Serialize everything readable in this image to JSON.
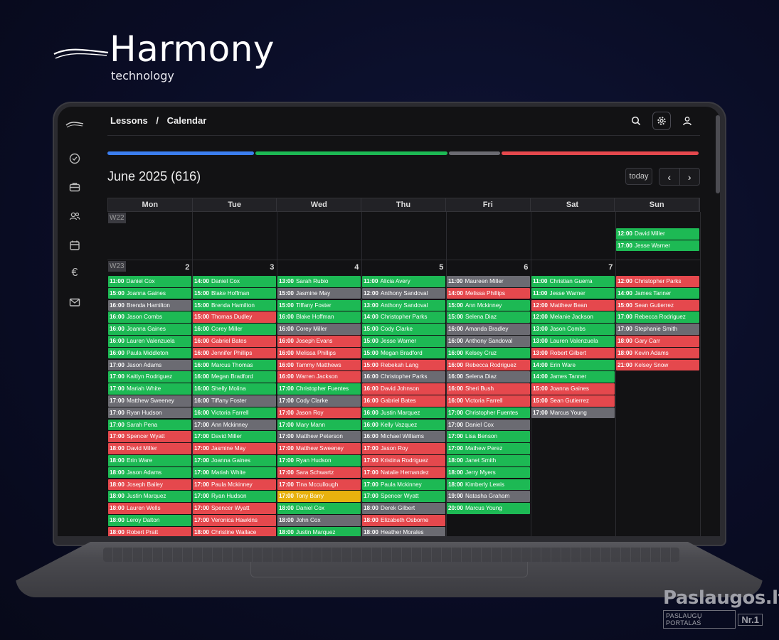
{
  "brand": {
    "title": "Harmony",
    "subtitle": "technology"
  },
  "breadcrumb": [
    "Lessons",
    "/",
    "Calendar"
  ],
  "header_icons": [
    "search-icon",
    "gear-icon",
    "user-icon"
  ],
  "sidebar_icons": [
    "check-circle-icon",
    "briefcase-icon",
    "users-icon",
    "calendar-icon",
    "euro-icon",
    "mail-icon"
  ],
  "progress": [
    {
      "color": "#3b7ef0",
      "value": 0.249
    },
    {
      "color": "#1db954",
      "value": 0.326
    },
    {
      "color": "#6b6b72",
      "value": 0.088
    },
    {
      "color": "#e5484d",
      "value": 0.334
    }
  ],
  "month_title": "June 2025 (616)",
  "today_label": "today",
  "nav": {
    "prev": "‹",
    "next": "›"
  },
  "weekdays": [
    "Mon",
    "Tue",
    "Wed",
    "Thu",
    "Fri",
    "Sat",
    "Sun"
  ],
  "colors": {
    "green": "#1db954",
    "red": "#e5484d",
    "gray": "#6b6b72",
    "yellow": "#e8b20e"
  },
  "weeks": [
    {
      "label": "W22",
      "days": [
        {
          "num": "",
          "events": []
        },
        {
          "num": "",
          "events": []
        },
        {
          "num": "",
          "events": []
        },
        {
          "num": "",
          "events": []
        },
        {
          "num": "",
          "events": []
        },
        {
          "num": "",
          "events": []
        },
        {
          "num": "",
          "events": [
            {
              "time": "12:00",
              "name": "David Miller",
              "status": "green"
            },
            {
              "time": "17:00",
              "name": "Jesse Warner",
              "status": "green"
            }
          ]
        }
      ]
    },
    {
      "label": "W23",
      "days": [
        {
          "num": "2",
          "events": [
            {
              "time": "11:00",
              "name": "Daniel Cox",
              "status": "green"
            },
            {
              "time": "15:00",
              "name": "Joanna Gaines",
              "status": "green"
            },
            {
              "time": "16:00",
              "name": "Brenda Hamilton",
              "status": "gray"
            },
            {
              "time": "16:00",
              "name": "Jason Combs",
              "status": "green"
            },
            {
              "time": "16:00",
              "name": "Joanna Gaines",
              "status": "green"
            },
            {
              "time": "16:00",
              "name": "Lauren Valenzuela",
              "status": "green"
            },
            {
              "time": "16:00",
              "name": "Paula Middleton",
              "status": "green"
            },
            {
              "time": "17:00",
              "name": "Jason Adams",
              "status": "gray"
            },
            {
              "time": "17:00",
              "name": "Kaitlyn Rodriguez",
              "status": "green"
            },
            {
              "time": "17:00",
              "name": "Mariah White",
              "status": "green"
            },
            {
              "time": "17:00",
              "name": "Matthew Sweeney",
              "status": "gray"
            },
            {
              "time": "17:00",
              "name": "Ryan Hudson",
              "status": "gray"
            },
            {
              "time": "17:00",
              "name": "Sarah Pena",
              "status": "green"
            },
            {
              "time": "17:00",
              "name": "Spencer Wyatt",
              "status": "red"
            },
            {
              "time": "18:00",
              "name": "David Miller",
              "status": "red"
            },
            {
              "time": "18:00",
              "name": "Erin Ware",
              "status": "green"
            },
            {
              "time": "18:00",
              "name": "Jason Adams",
              "status": "green"
            },
            {
              "time": "18:00",
              "name": "Joseph Bailey",
              "status": "red"
            },
            {
              "time": "18:00",
              "name": "Justin Marquez",
              "status": "green"
            },
            {
              "time": "18:00",
              "name": "Lauren Wells",
              "status": "red"
            },
            {
              "time": "18:00",
              "name": "Leroy Dalton",
              "status": "green"
            },
            {
              "time": "18:00",
              "name": "Robert Pratt",
              "status": "red"
            }
          ]
        },
        {
          "num": "3",
          "events": [
            {
              "time": "14:00",
              "name": "Daniel Cox",
              "status": "green"
            },
            {
              "time": "15:00",
              "name": "Blake Hoffman",
              "status": "green"
            },
            {
              "time": "15:00",
              "name": "Brenda Hamilton",
              "status": "green"
            },
            {
              "time": "15:00",
              "name": "Thomas Dudley",
              "status": "red"
            },
            {
              "time": "16:00",
              "name": "Corey Miller",
              "status": "green"
            },
            {
              "time": "16:00",
              "name": "Gabriel Bates",
              "status": "red"
            },
            {
              "time": "16:00",
              "name": "Jennifer Phillips",
              "status": "red"
            },
            {
              "time": "16:00",
              "name": "Marcus Thomas",
              "status": "green"
            },
            {
              "time": "16:00",
              "name": "Megan Bradford",
              "status": "green"
            },
            {
              "time": "16:00",
              "name": "Shelly Molina",
              "status": "green"
            },
            {
              "time": "16:00",
              "name": "Tiffany Foster",
              "status": "gray"
            },
            {
              "time": "16:00",
              "name": "Victoria Farrell",
              "status": "green"
            },
            {
              "time": "17:00",
              "name": "Ann Mckinney",
              "status": "gray"
            },
            {
              "time": "17:00",
              "name": "David Miller",
              "status": "green"
            },
            {
              "time": "17:00",
              "name": "Jasmine May",
              "status": "red"
            },
            {
              "time": "17:00",
              "name": "Joanna Gaines",
              "status": "green"
            },
            {
              "time": "17:00",
              "name": "Mariah White",
              "status": "green"
            },
            {
              "time": "17:00",
              "name": "Paula Mckinney",
              "status": "red"
            },
            {
              "time": "17:00",
              "name": "Ryan Hudson",
              "status": "green"
            },
            {
              "time": "17:00",
              "name": "Spencer Wyatt",
              "status": "red"
            },
            {
              "time": "17:00",
              "name": "Veronica Hawkins",
              "status": "red"
            },
            {
              "time": "18:00",
              "name": "Christine Wallace",
              "status": "red"
            }
          ]
        },
        {
          "num": "4",
          "events": [
            {
              "time": "13:00",
              "name": "Sarah Rubio",
              "status": "green"
            },
            {
              "time": "15:00",
              "name": "Jasmine May",
              "status": "gray"
            },
            {
              "time": "15:00",
              "name": "Tiffany Foster",
              "status": "green"
            },
            {
              "time": "16:00",
              "name": "Blake Hoffman",
              "status": "green"
            },
            {
              "time": "16:00",
              "name": "Corey Miller",
              "status": "gray"
            },
            {
              "time": "16:00",
              "name": "Joseph Evans",
              "status": "red"
            },
            {
              "time": "16:00",
              "name": "Melissa Phillips",
              "status": "red"
            },
            {
              "time": "16:00",
              "name": "Tammy Matthews",
              "status": "red"
            },
            {
              "time": "16:00",
              "name": "Warren Jackson",
              "status": "red"
            },
            {
              "time": "17:00",
              "name": "Christopher Fuentes",
              "status": "green"
            },
            {
              "time": "17:00",
              "name": "Cody Clarke",
              "status": "gray"
            },
            {
              "time": "17:00",
              "name": "Jason Roy",
              "status": "red"
            },
            {
              "time": "17:00",
              "name": "Mary Mann",
              "status": "green"
            },
            {
              "time": "17:00",
              "name": "Matthew Peterson",
              "status": "gray"
            },
            {
              "time": "17:00",
              "name": "Matthew Sweeney",
              "status": "red"
            },
            {
              "time": "17:00",
              "name": "Ryan Hudson",
              "status": "green"
            },
            {
              "time": "17:00",
              "name": "Sara Schwartz",
              "status": "red"
            },
            {
              "time": "17:00",
              "name": "Tina Mccullough",
              "status": "red"
            },
            {
              "time": "17:00",
              "name": "Tony Barry",
              "status": "yellow"
            },
            {
              "time": "18:00",
              "name": "Daniel Cox",
              "status": "green"
            },
            {
              "time": "18:00",
              "name": "John Cox",
              "status": "gray"
            },
            {
              "time": "18:00",
              "name": "Justin Marquez",
              "status": "green"
            }
          ]
        },
        {
          "num": "5",
          "events": [
            {
              "time": "11:00",
              "name": "Alicia Avery",
              "status": "green"
            },
            {
              "time": "12:00",
              "name": "Anthony Sandoval",
              "status": "gray"
            },
            {
              "time": "13:00",
              "name": "Anthony Sandoval",
              "status": "green"
            },
            {
              "time": "14:00",
              "name": "Christopher Parks",
              "status": "green"
            },
            {
              "time": "15:00",
              "name": "Cody Clarke",
              "status": "green"
            },
            {
              "time": "15:00",
              "name": "Jesse Warner",
              "status": "green"
            },
            {
              "time": "15:00",
              "name": "Megan Bradford",
              "status": "green"
            },
            {
              "time": "15:00",
              "name": "Rebekah Lang",
              "status": "red"
            },
            {
              "time": "16:00",
              "name": "Christopher Parks",
              "status": "gray"
            },
            {
              "time": "16:00",
              "name": "David Johnson",
              "status": "red"
            },
            {
              "time": "16:00",
              "name": "Gabriel Bates",
              "status": "red"
            },
            {
              "time": "16:00",
              "name": "Justin Marquez",
              "status": "green"
            },
            {
              "time": "16:00",
              "name": "Kelly Vazquez",
              "status": "green"
            },
            {
              "time": "16:00",
              "name": "Michael Williams",
              "status": "gray"
            },
            {
              "time": "17:00",
              "name": "Jason Roy",
              "status": "red"
            },
            {
              "time": "17:00",
              "name": "Kristina Rodriguez",
              "status": "red"
            },
            {
              "time": "17:00",
              "name": "Natalie Hernandez",
              "status": "red"
            },
            {
              "time": "17:00",
              "name": "Paula Mckinney",
              "status": "green"
            },
            {
              "time": "17:00",
              "name": "Spencer Wyatt",
              "status": "green"
            },
            {
              "time": "18:00",
              "name": "Derek Gilbert",
              "status": "gray"
            },
            {
              "time": "18:00",
              "name": "Elizabeth Osborne",
              "status": "red"
            },
            {
              "time": "18:00",
              "name": "Heather Morales",
              "status": "gray"
            }
          ]
        },
        {
          "num": "6",
          "events": [
            {
              "time": "11:00",
              "name": "Maureen Miller",
              "status": "gray"
            },
            {
              "time": "14:00",
              "name": "Melissa Phillips",
              "status": "red"
            },
            {
              "time": "15:00",
              "name": "Ann Mckinney",
              "status": "green"
            },
            {
              "time": "15:00",
              "name": "Selena Diaz",
              "status": "green"
            },
            {
              "time": "16:00",
              "name": "Amanda Bradley",
              "status": "gray"
            },
            {
              "time": "16:00",
              "name": "Anthony Sandoval",
              "status": "gray"
            },
            {
              "time": "16:00",
              "name": "Kelsey Cruz",
              "status": "green"
            },
            {
              "time": "16:00",
              "name": "Rebecca Rodriguez",
              "status": "red"
            },
            {
              "time": "16:00",
              "name": "Selena Diaz",
              "status": "gray"
            },
            {
              "time": "16:00",
              "name": "Sheri Bush",
              "status": "red"
            },
            {
              "time": "16:00",
              "name": "Victoria Farrell",
              "status": "red"
            },
            {
              "time": "17:00",
              "name": "Christopher Fuentes",
              "status": "green"
            },
            {
              "time": "17:00",
              "name": "Daniel Cox",
              "status": "gray"
            },
            {
              "time": "17:00",
              "name": "Lisa Benson",
              "status": "green"
            },
            {
              "time": "17:00",
              "name": "Mathew Perez",
              "status": "green"
            },
            {
              "time": "18:00",
              "name": "Janet Smith",
              "status": "green"
            },
            {
              "time": "18:00",
              "name": "Jerry Myers",
              "status": "green"
            },
            {
              "time": "18:00",
              "name": "Kimberly Lewis",
              "status": "green"
            },
            {
              "time": "19:00",
              "name": "Natasha Graham",
              "status": "gray"
            },
            {
              "time": "20:00",
              "name": "Marcus Young",
              "status": "green"
            }
          ]
        },
        {
          "num": "7",
          "events": [
            {
              "time": "11:00",
              "name": "Christian Guerra",
              "status": "green"
            },
            {
              "time": "11:00",
              "name": "Jesse Warner",
              "status": "green"
            },
            {
              "time": "12:00",
              "name": "Matthew Bean",
              "status": "red"
            },
            {
              "time": "12:00",
              "name": "Melanie Jackson",
              "status": "green"
            },
            {
              "time": "13:00",
              "name": "Jason Combs",
              "status": "green"
            },
            {
              "time": "13:00",
              "name": "Lauren Valenzuela",
              "status": "green"
            },
            {
              "time": "13:00",
              "name": "Robert Gilbert",
              "status": "red"
            },
            {
              "time": "14:00",
              "name": "Erin Ware",
              "status": "green"
            },
            {
              "time": "14:00",
              "name": "James Tanner",
              "status": "green"
            },
            {
              "time": "15:00",
              "name": "Joanna Gaines",
              "status": "red"
            },
            {
              "time": "15:00",
              "name": "Sean Gutierrez",
              "status": "red"
            },
            {
              "time": "17:00",
              "name": "Marcus Young",
              "status": "gray"
            }
          ]
        },
        {
          "num": "",
          "events": [
            {
              "time": "12:00",
              "name": "Christopher Parks",
              "status": "red"
            },
            {
              "time": "14:00",
              "name": "James Tanner",
              "status": "green"
            },
            {
              "time": "15:00",
              "name": "Sean Gutierrez",
              "status": "red"
            },
            {
              "time": "17:00",
              "name": "Rebecca Rodriguez",
              "status": "green"
            },
            {
              "time": "17:00",
              "name": "Stephanie Smith",
              "status": "gray"
            },
            {
              "time": "18:00",
              "name": "Gary Carr",
              "status": "red"
            },
            {
              "time": "18:00",
              "name": "Kevin Adams",
              "status": "red"
            },
            {
              "time": "21:00",
              "name": "Kelsey Snow",
              "status": "red"
            }
          ]
        }
      ]
    }
  ],
  "watermark": {
    "name": "Paslaugos.lt",
    "portal": "PASLAUGŲ PORTALAS",
    "rank": "Nr.1"
  }
}
